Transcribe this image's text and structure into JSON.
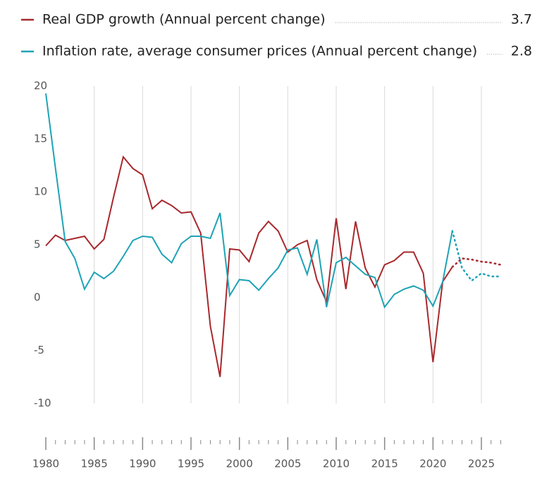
{
  "chart_data": {
    "type": "line",
    "x": [
      1980,
      1981,
      1982,
      1983,
      1984,
      1985,
      1986,
      1987,
      1988,
      1989,
      1990,
      1991,
      1992,
      1993,
      1994,
      1995,
      1996,
      1997,
      1998,
      1999,
      2000,
      2001,
      2002,
      2003,
      2004,
      2005,
      2006,
      2007,
      2008,
      2009,
      2010,
      2011,
      2012,
      2013,
      2014,
      2015,
      2016,
      2017,
      2018,
      2019,
      2020,
      2021,
      2022,
      2023,
      2024,
      2025,
      2026,
      2027
    ],
    "series": [
      {
        "name": "Real GDP growth (Annual percent change)",
        "color": "#a8282c",
        "values": [
          4.9,
          5.9,
          5.4,
          5.6,
          5.8,
          4.6,
          5.5,
          9.5,
          13.3,
          12.2,
          11.6,
          8.4,
          9.2,
          8.7,
          8.0,
          8.1,
          6.1,
          -2.7,
          -7.5,
          4.6,
          4.5,
          3.4,
          6.1,
          7.2,
          6.3,
          4.3,
          5.0,
          5.4,
          1.7,
          -0.4,
          7.5,
          0.8,
          7.2,
          2.8,
          1.0,
          3.1,
          3.5,
          4.3,
          4.3,
          2.3,
          -6.1,
          1.5,
          2.9,
          3.7,
          3.6,
          3.4,
          3.3,
          3.1
        ]
      },
      {
        "name": "Inflation rate, average consumer prices (Annual percent change)",
        "color": "#1ea3b5",
        "values": [
          19.3,
          12.2,
          5.3,
          3.7,
          0.8,
          2.4,
          1.8,
          2.5,
          3.9,
          5.4,
          5.8,
          5.7,
          4.1,
          3.3,
          5.1,
          5.8,
          5.8,
          5.6,
          8.0,
          0.2,
          1.7,
          1.6,
          0.7,
          1.8,
          2.8,
          4.5,
          4.7,
          2.2,
          5.5,
          -0.9,
          3.3,
          3.8,
          3.0,
          2.2,
          1.9,
          -0.9,
          0.3,
          0.8,
          1.1,
          0.7,
          -0.8,
          1.5,
          6.3,
          2.8,
          1.6,
          2.3,
          2.0,
          2.0
        ]
      }
    ],
    "forecast_from": 2022,
    "legend_year": 2023,
    "xlim": [
      1980,
      2027
    ],
    "xticks": [
      1980,
      1985,
      1990,
      1995,
      2000,
      2005,
      2010,
      2015,
      2020,
      2025
    ],
    "ylim": [
      -10,
      20
    ],
    "yticks": [
      -10,
      -5,
      0,
      5,
      10,
      15,
      20
    ],
    "grid": true
  }
}
